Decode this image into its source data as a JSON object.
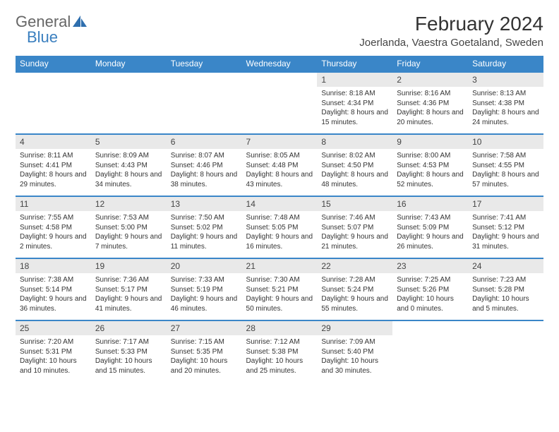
{
  "brand": {
    "word1": "General",
    "word2": "Blue",
    "logo_color": "#2f6fae"
  },
  "title": "February 2024",
  "location": "Joerlanda, Vaestra Goetaland, Sweden",
  "colors": {
    "header_bg": "#3a86c8",
    "header_text": "#ffffff",
    "daynum_bg": "#e9e9e9",
    "text": "#333333",
    "rule": "#3a86c8"
  },
  "weekdays": [
    "Sunday",
    "Monday",
    "Tuesday",
    "Wednesday",
    "Thursday",
    "Friday",
    "Saturday"
  ],
  "weeks": [
    [
      null,
      null,
      null,
      null,
      {
        "n": "1",
        "sr": "8:18 AM",
        "ss": "4:34 PM",
        "dl": "8 hours and 15 minutes."
      },
      {
        "n": "2",
        "sr": "8:16 AM",
        "ss": "4:36 PM",
        "dl": "8 hours and 20 minutes."
      },
      {
        "n": "3",
        "sr": "8:13 AM",
        "ss": "4:38 PM",
        "dl": "8 hours and 24 minutes."
      }
    ],
    [
      {
        "n": "4",
        "sr": "8:11 AM",
        "ss": "4:41 PM",
        "dl": "8 hours and 29 minutes."
      },
      {
        "n": "5",
        "sr": "8:09 AM",
        "ss": "4:43 PM",
        "dl": "8 hours and 34 minutes."
      },
      {
        "n": "6",
        "sr": "8:07 AM",
        "ss": "4:46 PM",
        "dl": "8 hours and 38 minutes."
      },
      {
        "n": "7",
        "sr": "8:05 AM",
        "ss": "4:48 PM",
        "dl": "8 hours and 43 minutes."
      },
      {
        "n": "8",
        "sr": "8:02 AM",
        "ss": "4:50 PM",
        "dl": "8 hours and 48 minutes."
      },
      {
        "n": "9",
        "sr": "8:00 AM",
        "ss": "4:53 PM",
        "dl": "8 hours and 52 minutes."
      },
      {
        "n": "10",
        "sr": "7:58 AM",
        "ss": "4:55 PM",
        "dl": "8 hours and 57 minutes."
      }
    ],
    [
      {
        "n": "11",
        "sr": "7:55 AM",
        "ss": "4:58 PM",
        "dl": "9 hours and 2 minutes."
      },
      {
        "n": "12",
        "sr": "7:53 AM",
        "ss": "5:00 PM",
        "dl": "9 hours and 7 minutes."
      },
      {
        "n": "13",
        "sr": "7:50 AM",
        "ss": "5:02 PM",
        "dl": "9 hours and 11 minutes."
      },
      {
        "n": "14",
        "sr": "7:48 AM",
        "ss": "5:05 PM",
        "dl": "9 hours and 16 minutes."
      },
      {
        "n": "15",
        "sr": "7:46 AM",
        "ss": "5:07 PM",
        "dl": "9 hours and 21 minutes."
      },
      {
        "n": "16",
        "sr": "7:43 AM",
        "ss": "5:09 PM",
        "dl": "9 hours and 26 minutes."
      },
      {
        "n": "17",
        "sr": "7:41 AM",
        "ss": "5:12 PM",
        "dl": "9 hours and 31 minutes."
      }
    ],
    [
      {
        "n": "18",
        "sr": "7:38 AM",
        "ss": "5:14 PM",
        "dl": "9 hours and 36 minutes."
      },
      {
        "n": "19",
        "sr": "7:36 AM",
        "ss": "5:17 PM",
        "dl": "9 hours and 41 minutes."
      },
      {
        "n": "20",
        "sr": "7:33 AM",
        "ss": "5:19 PM",
        "dl": "9 hours and 46 minutes."
      },
      {
        "n": "21",
        "sr": "7:30 AM",
        "ss": "5:21 PM",
        "dl": "9 hours and 50 minutes."
      },
      {
        "n": "22",
        "sr": "7:28 AM",
        "ss": "5:24 PM",
        "dl": "9 hours and 55 minutes."
      },
      {
        "n": "23",
        "sr": "7:25 AM",
        "ss": "5:26 PM",
        "dl": "10 hours and 0 minutes."
      },
      {
        "n": "24",
        "sr": "7:23 AM",
        "ss": "5:28 PM",
        "dl": "10 hours and 5 minutes."
      }
    ],
    [
      {
        "n": "25",
        "sr": "7:20 AM",
        "ss": "5:31 PM",
        "dl": "10 hours and 10 minutes."
      },
      {
        "n": "26",
        "sr": "7:17 AM",
        "ss": "5:33 PM",
        "dl": "10 hours and 15 minutes."
      },
      {
        "n": "27",
        "sr": "7:15 AM",
        "ss": "5:35 PM",
        "dl": "10 hours and 20 minutes."
      },
      {
        "n": "28",
        "sr": "7:12 AM",
        "ss": "5:38 PM",
        "dl": "10 hours and 25 minutes."
      },
      {
        "n": "29",
        "sr": "7:09 AM",
        "ss": "5:40 PM",
        "dl": "10 hours and 30 minutes."
      },
      null,
      null
    ]
  ],
  "labels": {
    "sunrise": "Sunrise:",
    "sunset": "Sunset:",
    "daylight": "Daylight:"
  }
}
